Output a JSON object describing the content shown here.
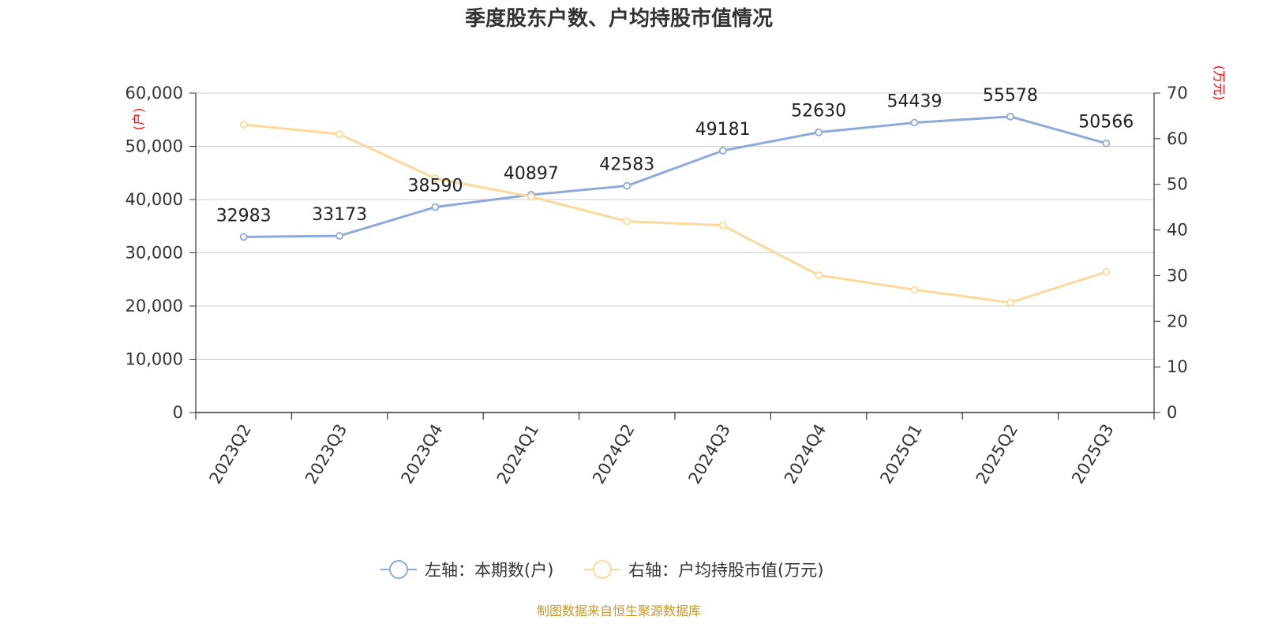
{
  "colors": {
    "series_left": "#8eaadb",
    "series_right": "#fdd89a",
    "grid": "#cccccc",
    "axis": "#333333",
    "unit_label": "#ff0000",
    "source": "#c8972a"
  },
  "chart_data": {
    "type": "line",
    "title": "季度股东户数、户均持股市值情况",
    "categories": [
      "2023Q2",
      "2023Q3",
      "2023Q4",
      "2024Q1",
      "2024Q2",
      "2024Q3",
      "2024Q4",
      "2025Q1",
      "2025Q2",
      "2025Q3"
    ],
    "y_left": {
      "unit": "(户)",
      "range": [
        0,
        60000
      ],
      "ticks": [
        "0",
        "10,000",
        "20,000",
        "30,000",
        "40,000",
        "50,000",
        "60,000"
      ],
      "tick_values": [
        0,
        10000,
        20000,
        30000,
        40000,
        50000,
        60000
      ]
    },
    "y_right": {
      "unit": "(万元)",
      "range": [
        0,
        70
      ],
      "ticks": [
        "0",
        "10",
        "20",
        "30",
        "40",
        "50",
        "60",
        "70"
      ],
      "tick_values": [
        0,
        10,
        20,
        30,
        40,
        50,
        60,
        70
      ]
    },
    "series": [
      {
        "name": "左轴：本期数(户)",
        "axis": "left",
        "values": [
          32983,
          33173,
          38590,
          40897,
          42583,
          49181,
          52630,
          54439,
          55578,
          50566
        ],
        "labels": [
          "32983",
          "33173",
          "38590",
          "40897",
          "42583",
          "49181",
          "52630",
          "54439",
          "55578",
          "50566"
        ]
      },
      {
        "name": "右轴：户均持股市值(万元)",
        "axis": "right",
        "values": [
          63.1,
          61.0,
          51.3,
          47.3,
          41.9,
          41.0,
          30.1,
          26.9,
          24.1,
          30.8
        ]
      }
    ],
    "grid": true,
    "legend_position": "bottom-center"
  },
  "source": "制图数据来自恒生聚源数据库"
}
